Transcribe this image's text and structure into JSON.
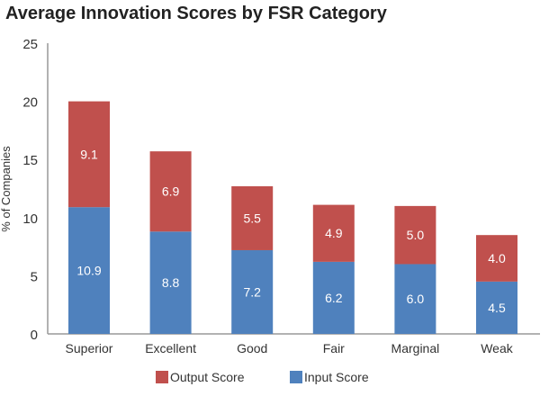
{
  "chart_data": {
    "type": "bar",
    "stacked": true,
    "title": "Average Innovation Scores by FSR Category",
    "xlabel": "",
    "ylabel": "% of Companies",
    "ylim": [
      0,
      25
    ],
    "yticks": [
      0,
      5,
      10,
      15,
      20,
      25
    ],
    "grid": false,
    "legend_position": "bottom",
    "categories": [
      "Superior",
      "Excellent",
      "Good",
      "Fair",
      "Marginal",
      "Weak"
    ],
    "series": [
      {
        "name": "Input Score",
        "color": "#4f81bd",
        "values": [
          10.9,
          8.8,
          7.2,
          6.2,
          6.0,
          4.5
        ]
      },
      {
        "name": "Output Score",
        "color": "#c0504d",
        "values": [
          9.1,
          6.9,
          5.5,
          4.9,
          5.0,
          4.0
        ]
      }
    ],
    "legend_order": [
      "Output Score",
      "Input Score"
    ]
  }
}
